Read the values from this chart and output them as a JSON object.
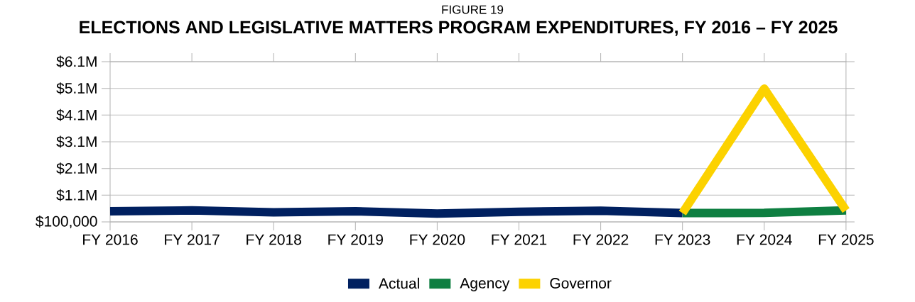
{
  "chart_data": {
    "type": "line",
    "title": "ELECTIONS AND LEGISLATIVE MATTERS PROGRAM EXPENDITURES, FY 2016 – FY 2025",
    "subtitle": "FIGURE 19",
    "categories": [
      "FY 2016",
      "FY 2017",
      "FY 2018",
      "FY 2019",
      "FY 2020",
      "FY 2021",
      "FY 2022",
      "FY 2023",
      "FY 2024",
      "FY 2025"
    ],
    "series": [
      {
        "name": "Actual",
        "color": "#002060",
        "values": [
          500000,
          530000,
          460000,
          500000,
          410000,
          480000,
          520000,
          430000,
          null,
          null
        ]
      },
      {
        "name": "Agency",
        "color": "#0e7f41",
        "values": [
          null,
          null,
          null,
          null,
          null,
          null,
          null,
          430000,
          440000,
          530000
        ]
      },
      {
        "name": "Governor",
        "color": "#fcd200",
        "values": [
          null,
          null,
          null,
          null,
          null,
          null,
          null,
          430000,
          5090000,
          530000
        ]
      }
    ],
    "ylim": [
      100000,
      6100000
    ],
    "yticks": [
      {
        "value": 100000,
        "label": "$100,000"
      },
      {
        "value": 1100000,
        "label": "$1.1M"
      },
      {
        "value": 2100000,
        "label": "$2.1M"
      },
      {
        "value": 3100000,
        "label": "$3.1M"
      },
      {
        "value": 4100000,
        "label": "$4.1M"
      },
      {
        "value": 5100000,
        "label": "$5.1M"
      },
      {
        "value": 6100000,
        "label": "$6.1M"
      }
    ],
    "grid": "y",
    "legend": "bottom",
    "marker": "none",
    "line_style": "solid"
  }
}
